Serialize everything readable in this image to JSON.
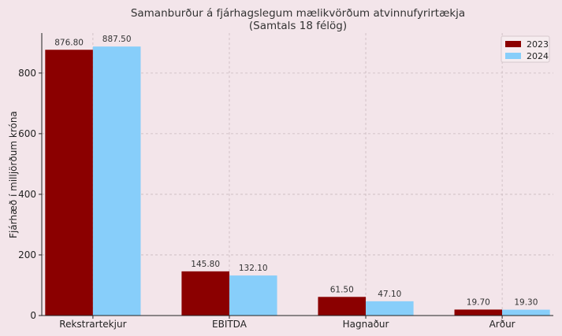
{
  "chart_data": {
    "type": "bar",
    "title": "Samanburður á fjárhagslegum mælikvörðum atvinnufyrirtækja",
    "subtitle": "(Samtals 18 félög)",
    "xlabel": "",
    "ylabel": "Fjárhæð í milljörðum króna",
    "categories": [
      "Rekstrartekjur",
      "EBITDA",
      "Hagnaður",
      "Arður"
    ],
    "series": [
      {
        "name": "2023",
        "values": [
          876.8,
          145.8,
          61.5,
          19.7
        ],
        "labels": [
          "876.80",
          "145.80",
          "61.50",
          "19.70"
        ],
        "color": "#8b0000"
      },
      {
        "name": "2024",
        "values": [
          887.5,
          132.1,
          47.1,
          19.3
        ],
        "labels": [
          "887.50",
          "132.10",
          "47.10",
          "19.30"
        ],
        "color": "#87cefa"
      }
    ],
    "ylim": [
      0,
      932
    ],
    "yticks": [
      0,
      200,
      400,
      600,
      800
    ],
    "ytick_labels": [
      "0",
      "200",
      "400",
      "600",
      "800"
    ],
    "grid": true,
    "legend_position": "top-right"
  },
  "colors": {
    "background": "#f3e5ea",
    "grid": "#c9b9be",
    "axis": "#222222"
  }
}
